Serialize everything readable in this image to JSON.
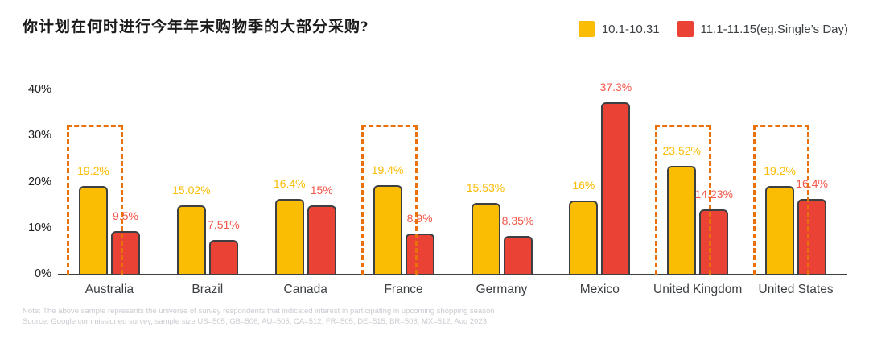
{
  "title": "你计划在何时进行今年年末购物季的大部分采购?",
  "legend": [
    {
      "key": "oct",
      "label": "10.1-10.31",
      "color": "#FBBC04"
    },
    {
      "key": "nov",
      "label": "11.1-11.15(eg.Single’s Day)",
      "color": "#EA4335"
    }
  ],
  "chart_data": {
    "type": "bar",
    "title": "你计划在何时进行今年年末购物季的大部分采购?",
    "categories": [
      "Australia",
      "Brazil",
      "Canada",
      "France",
      "Germany",
      "Mexico",
      "United Kingdom",
      "United States"
    ],
    "series": [
      {
        "key": "oct",
        "name": "10.1-10.31",
        "color": "#FBBC04",
        "label_color": "#FBBC04",
        "values": [
          19.2,
          15.02,
          16.4,
          19.4,
          15.53,
          16,
          23.52,
          19.2
        ]
      },
      {
        "key": "nov",
        "name": "11.1-11.15(eg.Single’s Day)",
        "color": "#EA4335",
        "label_color": "#F25749",
        "values": [
          9.5,
          7.51,
          15,
          8.9,
          8.35,
          37.3,
          14.23,
          16.4
        ]
      }
    ],
    "unit": "%",
    "ylim": [
      0,
      40
    ],
    "yticks": [
      40,
      30,
      20,
      10,
      0
    ],
    "ytick_labels": [
      "40%",
      "30%",
      "20%",
      "10%",
      "0%"
    ],
    "grid": false,
    "legend_position": "top-right",
    "highlighted_categories": [
      "Australia",
      "France",
      "United Kingdom",
      "United States"
    ],
    "highlight_box_top_percent": 32.5,
    "colors": {
      "bar_border": "#3c4043",
      "axis": "#3c4043",
      "highlight_dash": "#e8710a"
    }
  },
  "footnotes": {
    "note": "Note: The above sample represents the universe of survey respondents that indicated interest in participating in upcoming shopping season",
    "source": "Source: Google commissioned survey, sample size US=505, GB=506, AU=505, CA=512, FR=505, DE=515, BR=506, MX=512, Aug 2023"
  }
}
